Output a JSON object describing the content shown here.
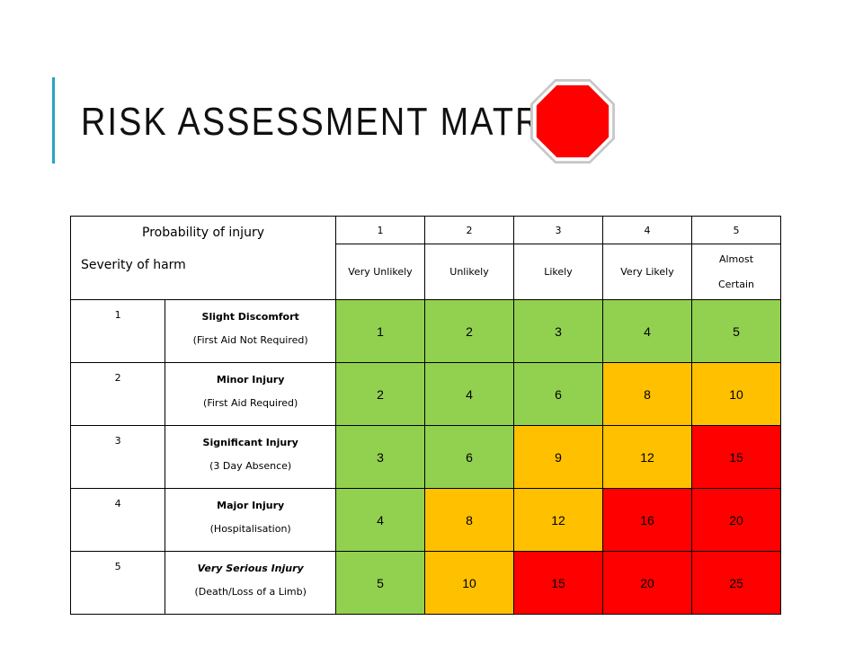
{
  "slide": {
    "title": "RISK ASSESSMENT MATRIX",
    "stop_sign_icon": "stop-sign-icon",
    "accent_color": "#2aa4bf"
  },
  "matrix": {
    "corner": {
      "probability_label": "Probability of injury",
      "severity_label": "Severity of harm"
    },
    "probability": [
      {
        "num": "1",
        "label": "Very Unlikely"
      },
      {
        "num": "2",
        "label": "Unlikely"
      },
      {
        "num": "3",
        "label": "Likely"
      },
      {
        "num": "4",
        "label": "Very Likely"
      },
      {
        "num": "5",
        "label": "Almost Certain"
      }
    ],
    "severity": [
      {
        "num": "1",
        "title": "Slight Discomfort",
        "subtitle": "(First Aid Not Required)",
        "scores": [
          {
            "v": "1",
            "level": "green"
          },
          {
            "v": "2",
            "level": "green"
          },
          {
            "v": "3",
            "level": "green"
          },
          {
            "v": "4",
            "level": "green"
          },
          {
            "v": "5",
            "level": "green"
          }
        ]
      },
      {
        "num": "2",
        "title": "Minor Injury",
        "subtitle": "(First Aid Required)",
        "scores": [
          {
            "v": "2",
            "level": "green"
          },
          {
            "v": "4",
            "level": "green"
          },
          {
            "v": "6",
            "level": "green"
          },
          {
            "v": "8",
            "level": "amber"
          },
          {
            "v": "10",
            "level": "amber"
          }
        ]
      },
      {
        "num": "3",
        "title": "Significant Injury",
        "subtitle": "(3 Day Absence)",
        "scores": [
          {
            "v": "3",
            "level": "green"
          },
          {
            "v": "6",
            "level": "green"
          },
          {
            "v": "9",
            "level": "amber"
          },
          {
            "v": "12",
            "level": "amber"
          },
          {
            "v": "15",
            "level": "red"
          }
        ]
      },
      {
        "num": "4",
        "title": "Major Injury",
        "subtitle": "(Hospitalisation)",
        "scores": [
          {
            "v": "4",
            "level": "green"
          },
          {
            "v": "8",
            "level": "amber"
          },
          {
            "v": "12",
            "level": "amber"
          },
          {
            "v": "16",
            "level": "red"
          },
          {
            "v": "20",
            "level": "red"
          }
        ]
      },
      {
        "num": "5",
        "title": "Very Serious Injury",
        "subtitle": "(Death/Loss of a Limb)",
        "scores": [
          {
            "v": "5",
            "level": "green"
          },
          {
            "v": "10",
            "level": "amber"
          },
          {
            "v": "15",
            "level": "red"
          },
          {
            "v": "20",
            "level": "red"
          },
          {
            "v": "25",
            "level": "red"
          }
        ]
      }
    ],
    "level_colors": {
      "green": "#92d050",
      "amber": "#ffc000",
      "red": "#ff0000"
    }
  }
}
